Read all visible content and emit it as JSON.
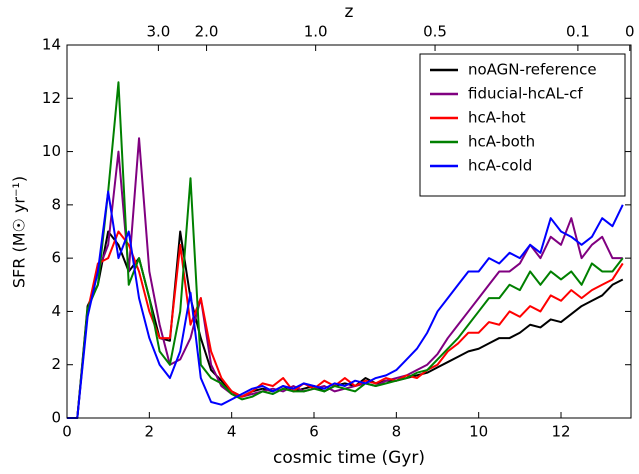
{
  "chart_data": {
    "type": "line",
    "xlabel": "cosmic time (Gyr)",
    "ylabel": "SFR (M☉ yr⁻¹)",
    "x2label": "z",
    "xlim": [
      0,
      13.7
    ],
    "xticks": [
      0,
      2,
      4,
      6,
      8,
      10,
      12
    ],
    "ylim": [
      0,
      14
    ],
    "yticks": [
      0,
      2,
      4,
      6,
      8,
      10,
      12,
      14
    ],
    "x2ticks": [
      {
        "value": 2.22,
        "label": "3.0"
      },
      {
        "value": 3.39,
        "label": "2.0"
      },
      {
        "value": 6.04,
        "label": "1.0"
      },
      {
        "value": 8.94,
        "label": "0.5"
      },
      {
        "value": 12.41,
        "label": "0.1"
      },
      {
        "value": 13.67,
        "label": "0"
      }
    ],
    "grid": false,
    "legend": "upper right",
    "x": [
      0,
      0.25,
      0.5,
      0.75,
      1,
      1.25,
      1.5,
      1.75,
      2,
      2.25,
      2.5,
      2.75,
      3,
      3.25,
      3.5,
      3.75,
      4,
      4.25,
      4.5,
      4.75,
      5,
      5.25,
      5.5,
      5.75,
      6,
      6.25,
      6.5,
      6.75,
      7,
      7.25,
      7.5,
      7.75,
      8,
      8.25,
      8.5,
      8.75,
      9,
      9.25,
      9.5,
      9.75,
      10,
      10.25,
      10.5,
      10.75,
      11,
      11.25,
      11.5,
      11.75,
      12,
      12.25,
      12.5,
      12.75,
      13,
      13.25,
      13.5
    ],
    "series": [
      {
        "name": "noAGN-reference",
        "color": "#000000",
        "values": [
          0,
          0,
          4.2,
          5.0,
          7.0,
          6.5,
          5.5,
          6.0,
          4.5,
          3.0,
          2.9,
          7.0,
          4.5,
          3.0,
          1.8,
          1.4,
          1.0,
          0.8,
          1.0,
          1.1,
          1.0,
          1.2,
          1.0,
          1.1,
          1.2,
          1.0,
          1.2,
          1.3,
          1.2,
          1.5,
          1.3,
          1.4,
          1.4,
          1.5,
          1.6,
          1.7,
          1.9,
          2.1,
          2.3,
          2.5,
          2.6,
          2.8,
          3.0,
          3.0,
          3.2,
          3.5,
          3.4,
          3.7,
          3.6,
          3.9,
          4.2,
          4.4,
          4.6,
          5.0,
          5.2
        ]
      },
      {
        "name": "fiducial-hcAL-cf",
        "color": "#800080",
        "values": [
          0,
          0,
          4.0,
          5.5,
          6.5,
          10.0,
          5.5,
          10.5,
          5.5,
          3.5,
          2.0,
          2.2,
          3.0,
          4.5,
          2.0,
          1.2,
          0.9,
          0.8,
          0.9,
          1.0,
          1.1,
          1.0,
          1.2,
          1.0,
          1.1,
          1.2,
          1.0,
          1.1,
          1.2,
          1.3,
          1.2,
          1.4,
          1.5,
          1.6,
          1.8,
          2.0,
          2.4,
          3.0,
          3.5,
          4.0,
          4.5,
          5.0,
          5.5,
          5.5,
          5.8,
          6.5,
          6.0,
          6.8,
          6.5,
          7.5,
          6.0,
          6.5,
          6.8,
          6.0,
          6.0
        ]
      },
      {
        "name": "hcA-hot",
        "color": "#ff0000",
        "values": [
          0,
          0,
          4.0,
          5.8,
          6.0,
          7.0,
          6.5,
          5.5,
          4.0,
          3.0,
          3.0,
          6.5,
          3.5,
          4.5,
          2.5,
          1.5,
          1.0,
          0.8,
          1.0,
          1.3,
          1.2,
          1.5,
          1.0,
          1.3,
          1.1,
          1.4,
          1.2,
          1.5,
          1.2,
          1.4,
          1.3,
          1.5,
          1.4,
          1.6,
          1.5,
          1.8,
          2.0,
          2.5,
          2.8,
          3.2,
          3.2,
          3.6,
          3.5,
          4.0,
          3.8,
          4.2,
          4.0,
          4.6,
          4.4,
          4.8,
          4.5,
          4.8,
          5.0,
          5.2,
          5.8
        ]
      },
      {
        "name": "hcA-both",
        "color": "#008000",
        "values": [
          0,
          0,
          4.1,
          5.0,
          8.5,
          12.6,
          5.0,
          6.0,
          4.5,
          2.5,
          2.0,
          4.0,
          9.0,
          2.0,
          1.5,
          1.3,
          0.9,
          0.7,
          0.8,
          1.0,
          0.9,
          1.1,
          1.0,
          1.0,
          1.1,
          1.0,
          1.2,
          1.1,
          1.0,
          1.3,
          1.2,
          1.3,
          1.4,
          1.5,
          1.7,
          1.8,
          2.2,
          2.6,
          3.0,
          3.5,
          4.0,
          4.5,
          4.5,
          5.0,
          4.8,
          5.5,
          5.0,
          5.5,
          5.2,
          5.5,
          5.0,
          5.8,
          5.5,
          5.5,
          6.0
        ]
      },
      {
        "name": "hcA-cold",
        "color": "#0000ff",
        "values": [
          0,
          0,
          3.8,
          5.5,
          8.5,
          6.0,
          7.0,
          4.5,
          3.0,
          2.0,
          1.5,
          2.5,
          4.7,
          1.5,
          0.6,
          0.5,
          0.7,
          0.9,
          1.1,
          1.2,
          1.0,
          1.2,
          1.1,
          1.3,
          1.2,
          1.1,
          1.3,
          1.2,
          1.4,
          1.3,
          1.5,
          1.6,
          1.8,
          2.2,
          2.6,
          3.2,
          4.0,
          4.5,
          5.0,
          5.5,
          5.5,
          6.0,
          5.8,
          6.2,
          6.0,
          6.5,
          6.2,
          7.5,
          7.0,
          6.8,
          6.5,
          6.8,
          7.5,
          7.2,
          8.0
        ]
      }
    ]
  }
}
